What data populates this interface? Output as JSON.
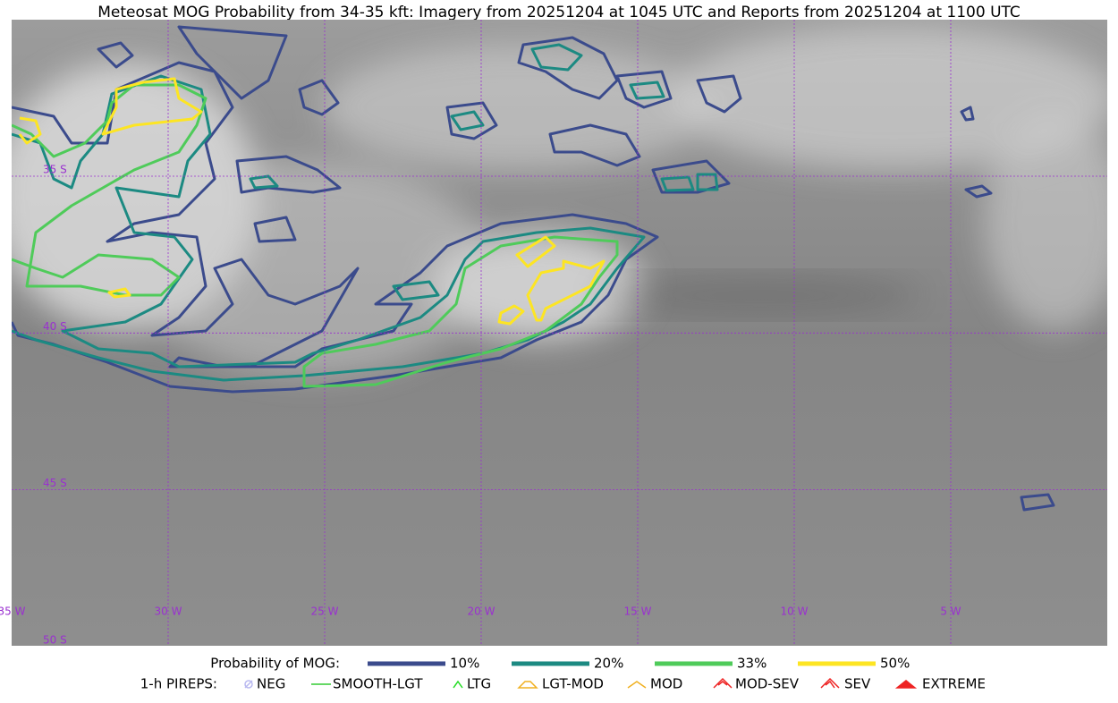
{
  "map": {
    "title": "Meteosat MOG Probability from 34-35 kft: Imagery from 20251204 at 1045 UTC and Reports from 20251204 at 1100 UTC",
    "lon_labels": [
      "35 W",
      "30 W",
      "25 W",
      "20 W",
      "15 W",
      "10 W",
      "5 W"
    ],
    "lat_labels": [
      "35 S",
      "40 S",
      "45 S",
      "50 S"
    ],
    "grid_color": "#9a30d0"
  },
  "legend": {
    "probability": {
      "title": "Probability of MOG:",
      "items": [
        {
          "label": "10%",
          "color": "#3b4b8c"
        },
        {
          "label": "20%",
          "color": "#1c8a82"
        },
        {
          "label": "33%",
          "color": "#4fcb5a"
        },
        {
          "label": "50%",
          "color": "#fde523"
        }
      ]
    },
    "pireps": {
      "title": "1-h PIREPS:",
      "items": [
        {
          "label": "NEG",
          "color": "#b9b9f0"
        },
        {
          "label": "SMOOTH-LGT",
          "color": "#33cc33"
        },
        {
          "label": "LTG",
          "color": "#22dd22"
        },
        {
          "label": "LGT-MOD",
          "color": "#f0b020"
        },
        {
          "label": "MOD",
          "color": "#f0b020"
        },
        {
          "label": "MOD-SEV",
          "color": "#ee2222"
        },
        {
          "label": "SEV",
          "color": "#ee2222"
        },
        {
          "label": "EXTREME",
          "color": "#ee2222"
        }
      ]
    }
  }
}
